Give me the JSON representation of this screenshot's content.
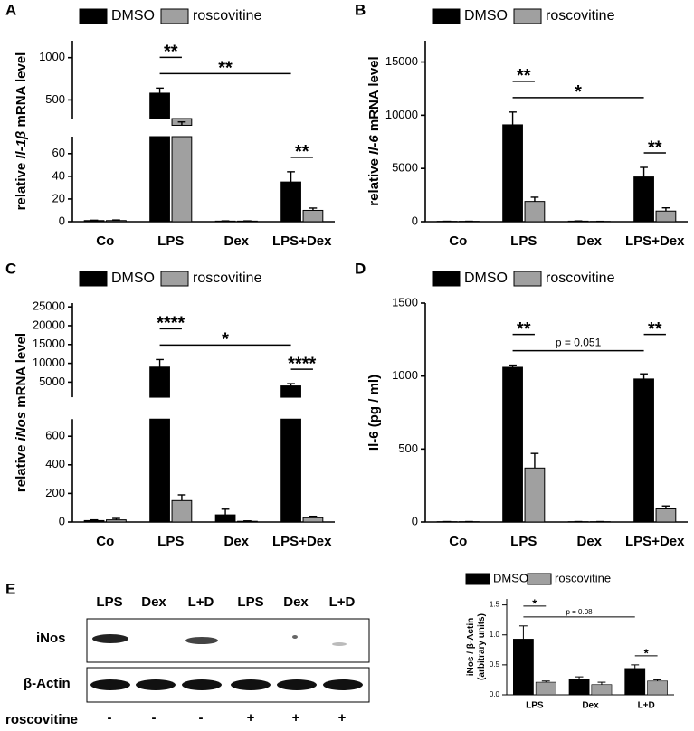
{
  "chart_data": [
    {
      "type": "bar",
      "panel": "A",
      "ylabel": [
        [
          "relative ",
          "Il-1β",
          " mRNA level"
        ]
      ],
      "categories": [
        "Co",
        "LPS",
        "Dex",
        "LPS+Dex"
      ],
      "series": [
        {
          "name": "DMSO",
          "color": "#000000",
          "values": [
            1,
            580,
            0.5,
            35
          ],
          "errors": [
            0.3,
            60,
            0.2,
            9
          ]
        },
        {
          "name": "roscovitine",
          "color": "#a0a0a0",
          "values": [
            1,
            200,
            0.5,
            10
          ],
          "errors": [
            0.5,
            40,
            0.2,
            2
          ]
        }
      ],
      "ylim": [
        0,
        1200
      ],
      "ybreak": [
        75,
        280
      ],
      "yticks": [
        0,
        20,
        40,
        60,
        500,
        1000
      ],
      "annotations": [
        {
          "text": "**",
          "from": [
            1,
            0
          ],
          "to": [
            3,
            0
          ]
        },
        {
          "text": "**",
          "from": [
            1,
            0
          ],
          "to": [
            1,
            1
          ]
        },
        {
          "text": "**",
          "from": [
            3,
            0
          ],
          "to": [
            3,
            1
          ]
        }
      ]
    },
    {
      "type": "bar",
      "panel": "B",
      "ylabel": [
        [
          "relative ",
          "Il-6",
          " mRNA level"
        ]
      ],
      "categories": [
        "Co",
        "LPS",
        "Dex",
        "LPS+Dex"
      ],
      "series": [
        {
          "name": "DMSO",
          "color": "#000000",
          "values": [
            30,
            9100,
            50,
            4200
          ],
          "errors": [
            10,
            1200,
            20,
            900
          ]
        },
        {
          "name": "roscovitine",
          "color": "#a0a0a0",
          "values": [
            30,
            1900,
            20,
            1000
          ],
          "errors": [
            10,
            400,
            10,
            300
          ]
        }
      ],
      "ylim": [
        0,
        17000
      ],
      "yticks": [
        0,
        5000,
        10000,
        15000
      ],
      "annotations": [
        {
          "text": "*",
          "from": [
            1,
            0
          ],
          "to": [
            3,
            0
          ]
        },
        {
          "text": "**",
          "from": [
            1,
            0
          ],
          "to": [
            1,
            1
          ]
        },
        {
          "text": "**",
          "from": [
            3,
            0
          ],
          "to": [
            3,
            1
          ]
        }
      ]
    },
    {
      "type": "bar",
      "panel": "C",
      "ylabel": [
        [
          "relative ",
          "iNos",
          " mRNA level"
        ]
      ],
      "categories": [
        "Co",
        "LPS",
        "Dex",
        "LPS+Dex"
      ],
      "series": [
        {
          "name": "DMSO",
          "color": "#000000",
          "values": [
            10,
            9000,
            50,
            4000
          ],
          "errors": [
            5,
            2000,
            40,
            600
          ]
        },
        {
          "name": "roscovitine",
          "color": "#a0a0a0",
          "values": [
            15,
            150,
            5,
            30
          ],
          "errors": [
            10,
            40,
            3,
            10
          ]
        }
      ],
      "ylim": [
        0,
        26000
      ],
      "ybreak": [
        720,
        1000
      ],
      "yticks": [
        0,
        200,
        400,
        600,
        5000,
        10000,
        15000,
        20000,
        25000
      ],
      "annotations": [
        {
          "text": "*",
          "from": [
            1,
            0
          ],
          "to": [
            3,
            0
          ]
        },
        {
          "text": "****",
          "from": [
            1,
            0
          ],
          "to": [
            1,
            1
          ]
        },
        {
          "text": "****",
          "from": [
            3,
            0
          ],
          "to": [
            3,
            1
          ]
        }
      ]
    },
    {
      "type": "bar",
      "panel": "D",
      "ylabel": [
        [
          "Il-6 (pg / ml)"
        ]
      ],
      "categories": [
        "Co",
        "LPS",
        "Dex",
        "LPS+Dex"
      ],
      "series": [
        {
          "name": "DMSO",
          "color": "#000000",
          "values": [
            2,
            1060,
            2,
            980
          ],
          "errors": [
            1,
            15,
            1,
            35
          ]
        },
        {
          "name": "roscovitine",
          "color": "#a0a0a0",
          "values": [
            2,
            370,
            2,
            90
          ],
          "errors": [
            1,
            100,
            1,
            20
          ]
        }
      ],
      "ylim": [
        0,
        1500
      ],
      "yticks": [
        0,
        500,
        1000,
        1500
      ],
      "annotations": [
        {
          "text": "p = 0.051",
          "from": [
            1,
            0
          ],
          "to": [
            3,
            0
          ]
        },
        {
          "text": "**",
          "from": [
            1,
            0
          ],
          "to": [
            1,
            1
          ]
        },
        {
          "text": "**",
          "from": [
            3,
            0
          ],
          "to": [
            3,
            1
          ]
        }
      ]
    },
    {
      "type": "bar",
      "ylabel": [
        [
          "iNos / β-Actin"
        ],
        [
          "(arbitrary units)"
        ]
      ],
      "categories": [
        "LPS",
        "Dex",
        "L+D"
      ],
      "series": [
        {
          "name": "DMSO",
          "color": "#000000",
          "values": [
            0.93,
            0.26,
            0.44
          ],
          "errors": [
            0.22,
            0.04,
            0.06
          ]
        },
        {
          "name": "roscovitine",
          "color": "#a0a0a0",
          "values": [
            0.21,
            0.17,
            0.23
          ],
          "errors": [
            0.02,
            0.04,
            0.02
          ]
        }
      ],
      "ylim": [
        0,
        1.6
      ],
      "yticks": [
        {
          "value": 0,
          "label": "0.0"
        },
        0.5,
        {
          "value": 1,
          "label": "1.0"
        },
        1.5
      ],
      "annotations": [
        {
          "text": "p = 0.08",
          "from": [
            0,
            0
          ],
          "to": [
            2,
            0
          ]
        },
        {
          "text": "*",
          "from": [
            0,
            0
          ],
          "to": [
            0,
            1
          ]
        },
        {
          "text": "*",
          "from": [
            2,
            0
          ],
          "to": [
            2,
            1
          ]
        }
      ]
    }
  ],
  "blot": {
    "panel": "E",
    "lanes": [
      "LPS",
      "Dex",
      "L+D",
      "LPS",
      "Dex",
      "L+D"
    ],
    "rows": [
      "iNos",
      "β-Actin"
    ],
    "treatment": "roscovitine",
    "treatment_marks": [
      "-",
      "-",
      "-",
      "+",
      "+",
      "+"
    ]
  }
}
